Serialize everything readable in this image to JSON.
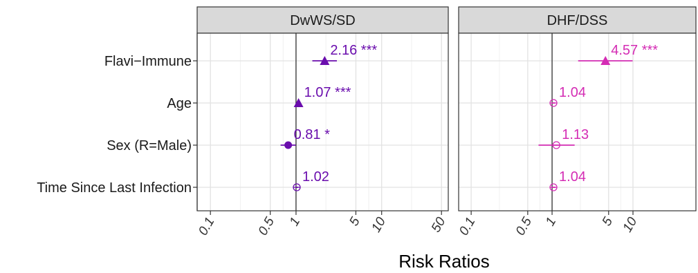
{
  "chart_data": {
    "type": "scatter",
    "subtype": "forest-plot",
    "xlabel": "Risk Ratios",
    "x_scale": "log",
    "categories": [
      "Flavi−Immune",
      "Age",
      "Sex (R=Male)",
      "Time Since Last Infection"
    ],
    "grid": true,
    "panels": [
      {
        "title": "DwWS/SD",
        "color": "#6a0dad",
        "xlim": [
          0.07,
          60
        ],
        "ticks": [
          0.1,
          0.5,
          1,
          5,
          10,
          50
        ],
        "tick_labels": [
          "0.1",
          "0.5",
          "1",
          "5",
          "10",
          "50"
        ],
        "points": [
          {
            "category": "Flavi−Immune",
            "rr": 2.16,
            "ci": [
              1.55,
              3.0
            ],
            "marker": "triangle",
            "label": "2.16 ***"
          },
          {
            "category": "Age",
            "rr": 1.07,
            "ci": [
              1.04,
              1.1
            ],
            "marker": "triangle",
            "label": "1.07 ***"
          },
          {
            "category": "Sex (R=Male)",
            "rr": 0.81,
            "ci": [
              0.66,
              0.99
            ],
            "marker": "circle-filled",
            "label": "0.81 *"
          },
          {
            "category": "Time Since Last Infection",
            "rr": 1.02,
            "ci": [
              0.99,
              1.05
            ],
            "marker": "circle-open",
            "label": "1.02"
          }
        ]
      },
      {
        "title": "DHF/DSS",
        "color": "#d42cb4",
        "xlim": [
          0.07,
          60
        ],
        "ticks": [
          0.1,
          0.5,
          1,
          5,
          10
        ],
        "tick_labels": [
          "0.1",
          "0.5",
          "1",
          "5",
          "10"
        ],
        "points": [
          {
            "category": "Flavi−Immune",
            "rr": 4.57,
            "ci": [
              2.1,
              9.9
            ],
            "marker": "triangle",
            "label": "4.57 ***"
          },
          {
            "category": "Age",
            "rr": 1.04,
            "ci": [
              0.99,
              1.09
            ],
            "marker": "circle-open",
            "label": "1.04"
          },
          {
            "category": "Sex (R=Male)",
            "rr": 1.13,
            "ci": [
              0.68,
              1.9
            ],
            "marker": "circle-open",
            "label": "1.13"
          },
          {
            "category": "Time Since Last Infection",
            "rr": 1.04,
            "ci": [
              0.98,
              1.1
            ],
            "marker": "circle-open",
            "label": "1.04"
          }
        ]
      }
    ]
  }
}
